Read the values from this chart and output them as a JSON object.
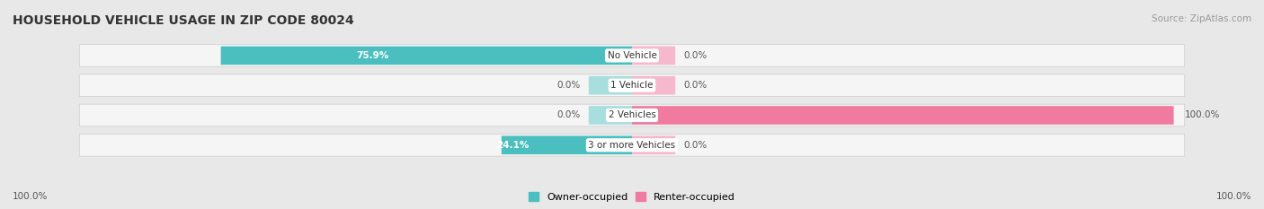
{
  "title": "HOUSEHOLD VEHICLE USAGE IN ZIP CODE 80024",
  "source": "Source: ZipAtlas.com",
  "categories": [
    "No Vehicle",
    "1 Vehicle",
    "2 Vehicles",
    "3 or more Vehicles"
  ],
  "owner_values": [
    75.9,
    0.0,
    0.0,
    24.1
  ],
  "renter_values": [
    0.0,
    0.0,
    100.0,
    0.0
  ],
  "owner_color": "#4bbfbf",
  "renter_color": "#f07aA0",
  "owner_color_light": "#a8dede",
  "renter_color_light": "#f5b8cc",
  "fig_bg_color": "#e8e8e8",
  "row_bg_color": "#f5f5f5",
  "row_border_color": "#cccccc",
  "title_fontsize": 10,
  "source_fontsize": 7.5,
  "value_fontsize": 7.5,
  "cat_fontsize": 7.5,
  "legend_fontsize": 8,
  "axis_label_left": "100.0%",
  "axis_label_right": "100.0%",
  "legend_owner": "Owner-occupied",
  "legend_renter": "Renter-occupied"
}
